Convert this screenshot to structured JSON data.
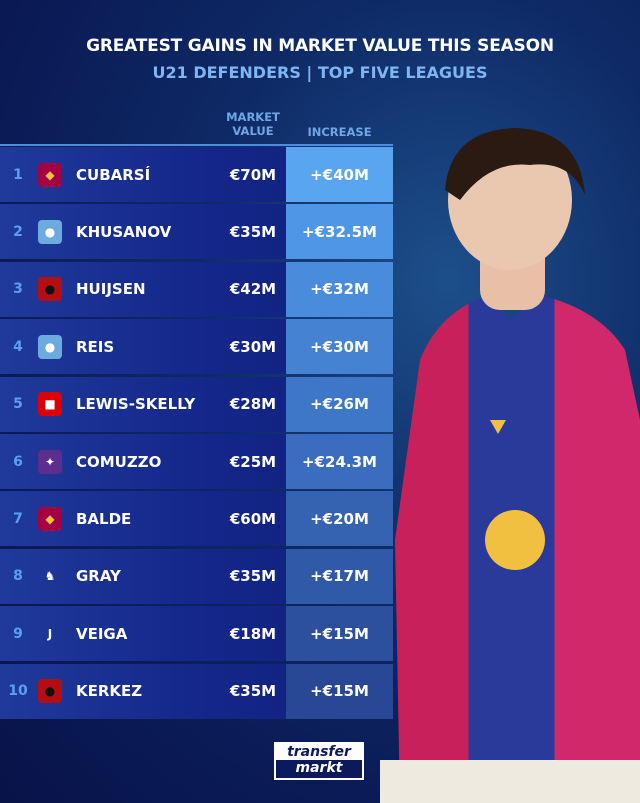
{
  "title": "GREATEST GAINS IN MARKET VALUE THIS SEASON",
  "subtitle": "U21 DEFENDERS | TOP FIVE LEAGUES",
  "columns": {
    "market_value": "MARKET VALUE",
    "increase": "INCREASE"
  },
  "rows": [
    {
      "rank": "1",
      "club_icon": "barcelona-crest",
      "name": "CUBARSÍ",
      "market_value": "€70M",
      "increase": "+€40M"
    },
    {
      "rank": "2",
      "club_icon": "man-city-crest",
      "name": "KHUSANOV",
      "market_value": "€35M",
      "increase": "+€32.5M"
    },
    {
      "rank": "3",
      "club_icon": "bournemouth-crest",
      "name": "HUIJSEN",
      "market_value": "€42M",
      "increase": "+€32M"
    },
    {
      "rank": "4",
      "club_icon": "man-city-crest",
      "name": "REIS",
      "market_value": "€30M",
      "increase": "+€30M"
    },
    {
      "rank": "5",
      "club_icon": "arsenal-crest",
      "name": "LEWIS-SKELLY",
      "market_value": "€28M",
      "increase": "+€26M"
    },
    {
      "rank": "6",
      "club_icon": "fiorentina-crest",
      "name": "COMUZZO",
      "market_value": "€25M",
      "increase": "+€24.3M"
    },
    {
      "rank": "7",
      "club_icon": "barcelona-crest",
      "name": "BALDE",
      "market_value": "€60M",
      "increase": "+€20M"
    },
    {
      "rank": "8",
      "club_icon": "tottenham-crest",
      "name": "GRAY",
      "market_value": "€35M",
      "increase": "+€17M"
    },
    {
      "rank": "9",
      "club_icon": "juventus-crest",
      "name": "VEIGA",
      "market_value": "€18M",
      "increase": "+€15M"
    },
    {
      "rank": "10",
      "club_icon": "bournemouth-crest",
      "name": "KERKEZ",
      "market_value": "€35M",
      "increase": "+€15M"
    }
  ],
  "brand": {
    "line1": "transfer",
    "line2": "markt"
  },
  "colors": {
    "accent": "#5aa5f0",
    "row": "#14278a",
    "background": "#0a1a55"
  }
}
